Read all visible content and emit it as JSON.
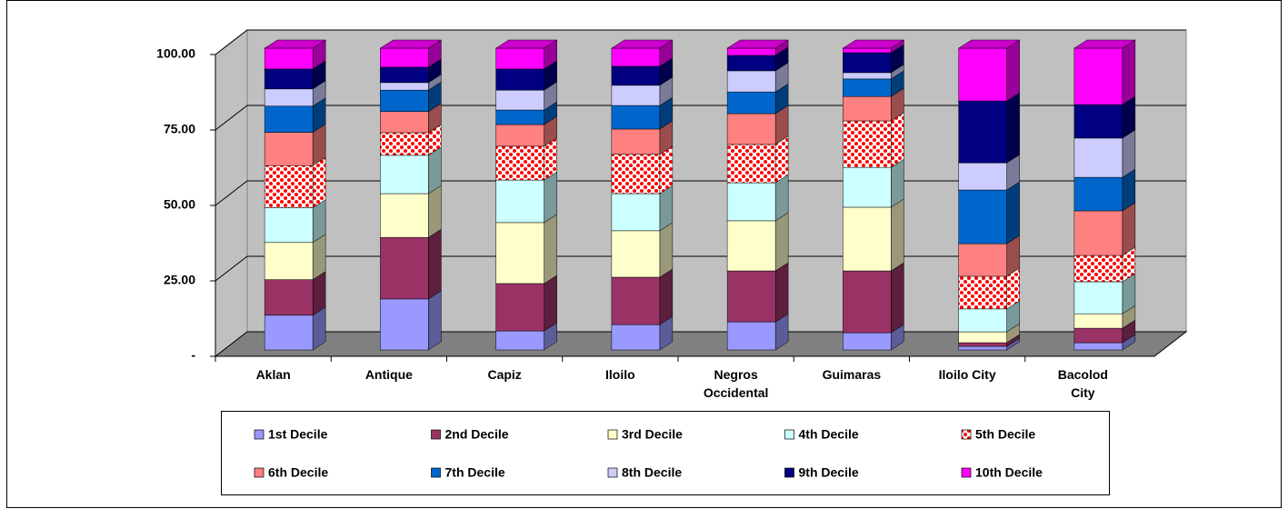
{
  "chart_data": {
    "type": "bar3d-stacked",
    "categories": [
      "Aklan",
      "Antique",
      "Capiz",
      "Iloilo",
      "Negros Occidental",
      "Guimaras",
      "Iloilo City",
      "Bacolod City"
    ],
    "series": [
      {
        "name": "1st Decile",
        "color": "#9999ff",
        "values": [
          11.5,
          16.9,
          6.3,
          8.4,
          9.3,
          5.7,
          1.2,
          2.4
        ]
      },
      {
        "name": "2nd Decile",
        "color": "#993366",
        "values": [
          11.8,
          20.4,
          15.7,
          15.7,
          16.9,
          20.5,
          1.2,
          4.8
        ]
      },
      {
        "name": "3rd Decile",
        "color": "#ffffcc",
        "values": [
          12.3,
          14.5,
          20.2,
          15.4,
          16.6,
          21.1,
          3.6,
          4.8
        ]
      },
      {
        "name": "4th Decile",
        "color": "#ccffff",
        "values": [
          11.5,
          12.7,
          14.1,
          12.3,
          12.6,
          13.2,
          7.6,
          10.6
        ]
      },
      {
        "name": "5th Decile",
        "color": "#ff0000",
        "pattern": "dots",
        "values": [
          14.0,
          7.5,
          11.2,
          13.0,
          12.7,
          15.4,
          10.8,
          8.7
        ]
      },
      {
        "name": "6th Decile",
        "color": "#ff8080",
        "values": [
          11.0,
          7.0,
          7.2,
          8.4,
          10.2,
          8.1,
          10.8,
          14.8
        ]
      },
      {
        "name": "7th Decile",
        "color": "#0066cc",
        "values": [
          8.7,
          7.1,
          4.8,
          7.8,
          7.2,
          5.8,
          17.8,
          11.1
        ]
      },
      {
        "name": "8th Decile",
        "color": "#ccccff",
        "values": [
          5.7,
          2.5,
          6.6,
          6.7,
          7.0,
          2.1,
          9.0,
          13.0
        ]
      },
      {
        "name": "9th Decile",
        "color": "#000080",
        "values": [
          6.6,
          5.1,
          7.0,
          6.3,
          5.1,
          6.6,
          20.5,
          11.1
        ]
      },
      {
        "name": "10th Decile",
        "color": "#ff00ff",
        "values": [
          6.9,
          6.3,
          6.9,
          6.0,
          2.4,
          1.5,
          17.5,
          18.7
        ]
      }
    ],
    "ylim": [
      0,
      100
    ],
    "yticks": [
      {
        "value": 0,
        "label": "-"
      },
      {
        "value": 25,
        "label": "25.00"
      },
      {
        "value": 50,
        "label": "50.00"
      },
      {
        "value": 75,
        "label": "75.00"
      },
      {
        "value": 100,
        "label": "100.00"
      }
    ],
    "grid": true,
    "legend": "bottom"
  }
}
